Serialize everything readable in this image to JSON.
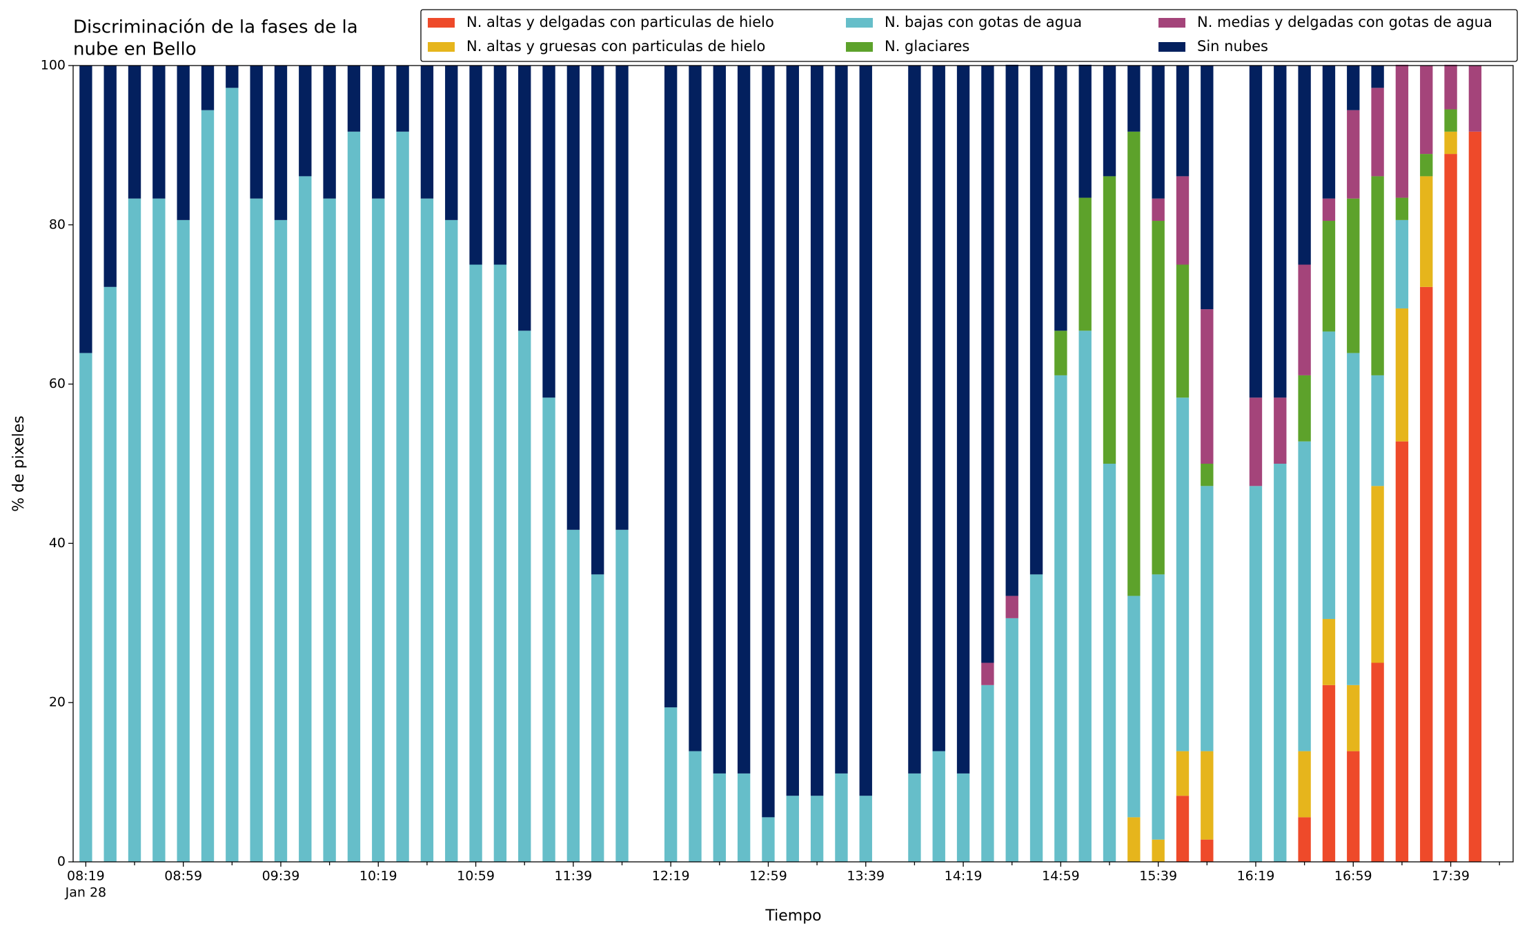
{
  "chart_data": {
    "type": "stacked_bar",
    "title": [
      "Discriminación de la fases de la",
      "nube en Bello"
    ],
    "xlabel": "Tiempo",
    "ylabel": "% de pixeles",
    "x_date_label": "Jan 28",
    "categories": [
      "08:19",
      null,
      null,
      null,
      "08:59",
      null,
      null,
      null,
      "09:39",
      null,
      null,
      null,
      "10:19",
      null,
      null,
      null,
      "10:59",
      null,
      null,
      null,
      "11:39",
      null,
      null,
      null,
      "12:19",
      null,
      null,
      null,
      "12:59",
      null,
      null,
      null,
      "13:39",
      null,
      null,
      null,
      "14:19",
      null,
      null,
      null,
      "14:59",
      null,
      null,
      null,
      "15:39",
      null,
      null,
      null,
      "16:19",
      null,
      null,
      null,
      "16:59",
      null,
      null,
      null,
      "17:39",
      null
    ],
    "ylim": [
      0,
      100
    ],
    "yticks": [
      0,
      20,
      40,
      60,
      80,
      100
    ],
    "legend_position": "top-right",
    "series": [
      {
        "name": "N. altas y delgadas con particulas de hielo",
        "color": "#ee4a2a",
        "values": [
          0,
          0,
          0,
          0,
          0,
          0,
          0,
          0,
          0,
          0,
          0,
          0,
          0,
          0,
          0,
          0,
          0,
          0,
          0,
          0,
          0,
          0,
          0,
          null,
          0,
          0,
          0,
          0,
          0,
          0,
          0,
          0,
          0,
          null,
          0,
          0,
          0,
          0,
          0,
          0,
          0,
          0,
          0,
          0,
          0,
          8.3,
          2.8,
          null,
          0,
          0,
          5.6,
          22.2,
          13.9,
          25,
          52.8,
          72.2,
          88.9,
          91.7
        ]
      },
      {
        "name": "N. altas y gruesas con particulas de hielo",
        "color": "#e6b51c",
        "values": [
          0,
          0,
          0,
          0,
          0,
          0,
          0,
          0,
          0,
          0,
          0,
          0,
          0,
          0,
          0,
          0,
          0,
          0,
          0,
          0,
          0,
          0,
          0,
          null,
          0,
          0,
          0,
          0,
          0,
          0,
          0,
          0,
          0,
          null,
          0,
          0,
          0,
          0,
          0,
          0,
          0,
          0,
          0,
          5.6,
          2.8,
          5.6,
          11.1,
          null,
          0,
          0,
          8.3,
          8.3,
          8.3,
          22.2,
          16.7,
          13.9,
          2.8,
          0
        ]
      },
      {
        "name": "N. bajas con gotas de agua",
        "color": "#66bec9",
        "values": [
          63.9,
          72.2,
          83.3,
          83.3,
          80.6,
          94.4,
          97.2,
          83.3,
          80.6,
          86.1,
          83.3,
          91.7,
          83.3,
          91.7,
          83.3,
          80.6,
          75,
          75,
          66.7,
          58.3,
          41.7,
          36.1,
          41.7,
          null,
          19.4,
          13.9,
          11.1,
          11.1,
          5.6,
          8.3,
          8.3,
          11.1,
          8.3,
          null,
          11.1,
          13.9,
          11.1,
          22.2,
          30.6,
          36.1,
          61.1,
          66.7,
          50,
          27.8,
          33.3,
          44.4,
          33.3,
          null,
          47.2,
          50,
          38.9,
          36.1,
          41.7,
          13.9,
          11.1,
          0,
          0,
          0
        ]
      },
      {
        "name": "N. glaciares",
        "color": "#5da22b",
        "values": [
          0,
          0,
          0,
          0,
          0,
          0,
          0,
          0,
          0,
          0,
          0,
          0,
          0,
          0,
          0,
          0,
          0,
          0,
          0,
          0,
          0,
          0,
          0,
          null,
          0,
          0,
          0,
          0,
          0,
          0,
          0,
          0,
          0,
          null,
          0,
          0,
          0,
          0,
          0,
          0,
          5.6,
          16.7,
          36.1,
          58.3,
          44.4,
          16.7,
          2.8,
          null,
          0,
          0,
          8.3,
          13.9,
          19.4,
          25,
          2.8,
          2.8,
          2.8,
          0
        ]
      },
      {
        "name": "N. medias y delgadas con gotas de agua",
        "color": "#a4447a",
        "values": [
          0,
          0,
          0,
          0,
          0,
          0,
          0,
          0,
          0,
          0,
          0,
          0,
          0,
          0,
          0,
          0,
          0,
          0,
          0,
          0,
          0,
          0,
          0,
          null,
          0,
          0,
          0,
          0,
          0,
          0,
          0,
          0,
          0,
          null,
          0,
          0,
          0,
          2.8,
          2.8,
          0,
          0,
          0,
          0,
          0,
          2.8,
          11.1,
          19.4,
          null,
          11.1,
          8.3,
          13.9,
          2.8,
          11.1,
          11.1,
          16.7,
          11.1,
          5.6,
          8.3
        ]
      },
      {
        "name": "Sin nubes",
        "color": "#03205e",
        "values": [
          36.1,
          27.8,
          16.7,
          16.7,
          19.4,
          5.6,
          2.8,
          16.7,
          19.4,
          13.9,
          16.7,
          8.3,
          16.7,
          8.3,
          16.7,
          19.4,
          25,
          25,
          33.3,
          41.7,
          58.3,
          63.9,
          58.3,
          null,
          80.6,
          86.1,
          88.9,
          88.9,
          94.4,
          91.7,
          91.7,
          88.9,
          91.7,
          null,
          88.9,
          86.1,
          88.9,
          75,
          66.7,
          63.9,
          33.3,
          16.7,
          13.9,
          8.3,
          16.7,
          13.9,
          30.6,
          null,
          41.7,
          41.7,
          25,
          16.7,
          5.6,
          2.8,
          0,
          0,
          0,
          0
        ]
      }
    ]
  }
}
